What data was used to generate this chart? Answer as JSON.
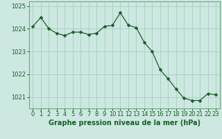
{
  "x": [
    0,
    1,
    2,
    3,
    4,
    5,
    6,
    7,
    8,
    9,
    10,
    11,
    12,
    13,
    14,
    15,
    16,
    17,
    18,
    19,
    20,
    21,
    22,
    23
  ],
  "y": [
    1024.1,
    1024.5,
    1024.0,
    1023.8,
    1023.7,
    1023.85,
    1023.85,
    1023.75,
    1023.8,
    1024.1,
    1024.15,
    1024.7,
    1024.15,
    1024.05,
    1023.4,
    1023.0,
    1022.2,
    1021.8,
    1021.35,
    1020.95,
    1020.85,
    1020.85,
    1021.15,
    1021.1
  ],
  "line_color": "#1a5c2a",
  "marker": "D",
  "marker_size": 2.5,
  "bg_color": "#cce8e0",
  "grid_color": "#aaccc4",
  "border_color": "#6aaa7a",
  "xlabel": "Graphe pression niveau de la mer (hPa)",
  "xlabel_color": "#1a5c2a",
  "xlabel_fontsize": 7,
  "tick_fontsize": 6,
  "ylim": [
    1020.5,
    1025.2
  ],
  "yticks": [
    1021,
    1022,
    1023,
    1024,
    1025
  ],
  "xticks": [
    0,
    1,
    2,
    3,
    4,
    5,
    6,
    7,
    8,
    9,
    10,
    11,
    12,
    13,
    14,
    15,
    16,
    17,
    18,
    19,
    20,
    21,
    22,
    23
  ]
}
